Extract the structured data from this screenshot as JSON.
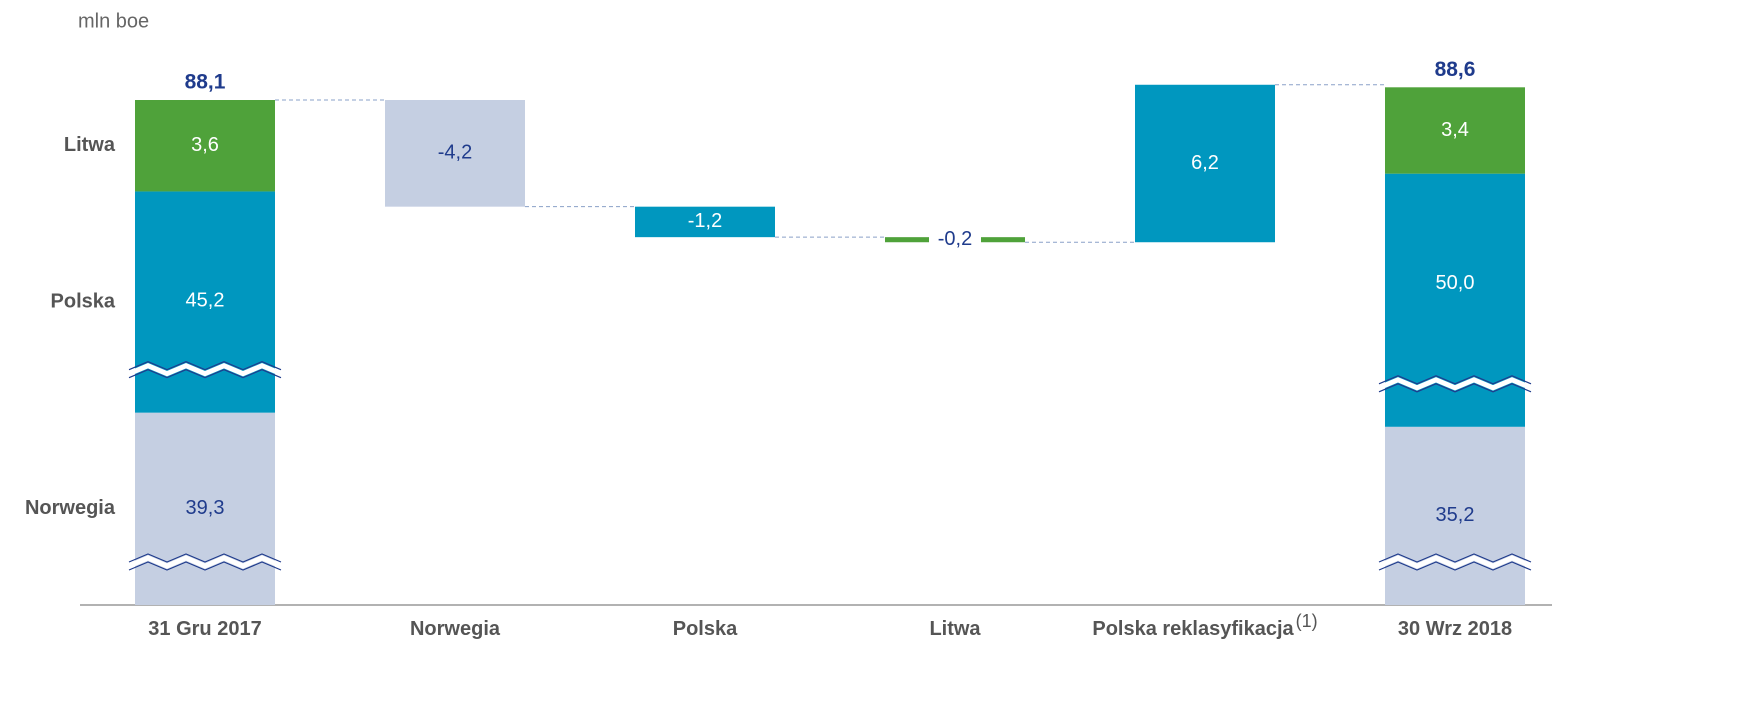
{
  "chart_data": {
    "type": "waterfall",
    "unit_label": "mln boe",
    "categories": [
      "31 Gru 2017",
      "Norwegia",
      "Polska",
      "Litwa",
      "Polska reklasyfikacja",
      "30 Wrz 2018"
    ],
    "footnote_marks": [
      null,
      null,
      null,
      null,
      "(1)",
      null
    ],
    "totals": [
      88.1,
      null,
      null,
      null,
      null,
      88.6
    ],
    "total_labels": [
      "88,1",
      null,
      null,
      null,
      null,
      "88,6"
    ],
    "series": [
      {
        "name": "Norwegia",
        "color": "#c5cfe2",
        "values": [
          39.3,
          -4.2,
          null,
          null,
          null,
          35.2
        ],
        "value_labels": [
          "39,3",
          "-4,2",
          null,
          null,
          null,
          "35,2"
        ]
      },
      {
        "name": "Polska",
        "color": "#0097bf",
        "values": [
          45.2,
          null,
          -1.2,
          null,
          6.2,
          50.0
        ],
        "value_labels": [
          "45,2",
          null,
          "-1,2",
          null,
          "6,2",
          "50,0"
        ]
      },
      {
        "name": "Litwa",
        "color": "#4fa23a",
        "values": [
          3.6,
          null,
          null,
          -0.2,
          null,
          3.4
        ],
        "value_labels": [
          "3,6",
          null,
          null,
          "-0,2",
          null,
          "3,4"
        ]
      }
    ]
  }
}
